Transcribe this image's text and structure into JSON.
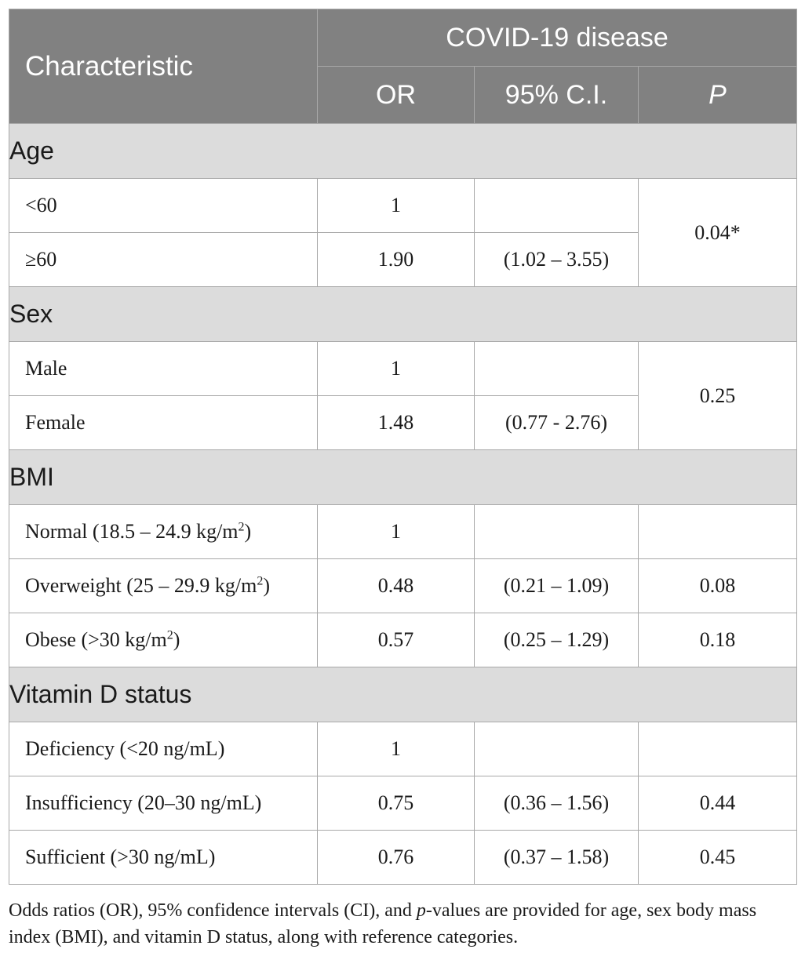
{
  "header": {
    "characteristic": "Characteristic",
    "group": "COVID-19 disease",
    "col_or": "OR",
    "col_ci": "95% C.I.",
    "col_p": "P"
  },
  "sections": [
    {
      "title": "Age",
      "rows": [
        {
          "label": "<60",
          "or": "1",
          "ci": "",
          "p": "0.04*"
        },
        {
          "label": "≥60",
          "or": "1.90",
          "ci": "(1.02 – 3.55)",
          "p": "0.04*"
        }
      ]
    },
    {
      "title": "Sex",
      "rows": [
        {
          "label": "Male",
          "or": "1",
          "ci": "",
          "p": "0.25"
        },
        {
          "label": "Female",
          "or": "1.48",
          "ci": "(0.77 - 2.76)",
          "p": "0.25"
        }
      ]
    },
    {
      "title": "BMI",
      "rows": [
        {
          "label": "Normal (18.5 – 24.9 kg/m",
          "sup": "2",
          "label_end": ")",
          "or": "1",
          "ci": "",
          "p": ""
        },
        {
          "label": "Overweight (25 – 29.9 kg/m",
          "sup": "2",
          "label_end": ")",
          "or": "0.48",
          "ci": "(0.21 – 1.09)",
          "p": "0.08"
        },
        {
          "label": "Obese (>30 kg/m",
          "sup": "2",
          "label_end": ")",
          "or": "0.57",
          "ci": "(0.25 – 1.29)",
          "p": "0.18"
        }
      ]
    },
    {
      "title": "Vitamin D status",
      "rows": [
        {
          "label": "Deficiency (<20 ng/mL)",
          "or": "1",
          "ci": "",
          "p": ""
        },
        {
          "label": "Insufficiency (20–30 ng/mL)",
          "or": "0.75",
          "ci": "(0.36 – 1.56)",
          "p": "0.44"
        },
        {
          "label": "Sufficient (>30 ng/mL)",
          "or": "0.76",
          "ci": "(0.37 – 1.58)",
          "p": "0.45"
        }
      ]
    }
  ],
  "footnote": {
    "part1": "Odds ratios (OR), 95% confidence intervals (CI), and ",
    "p_italic": "p",
    "part2": "-values are provided for age, sex body mass index (BMI), and vitamin D status, along with reference categories."
  }
}
